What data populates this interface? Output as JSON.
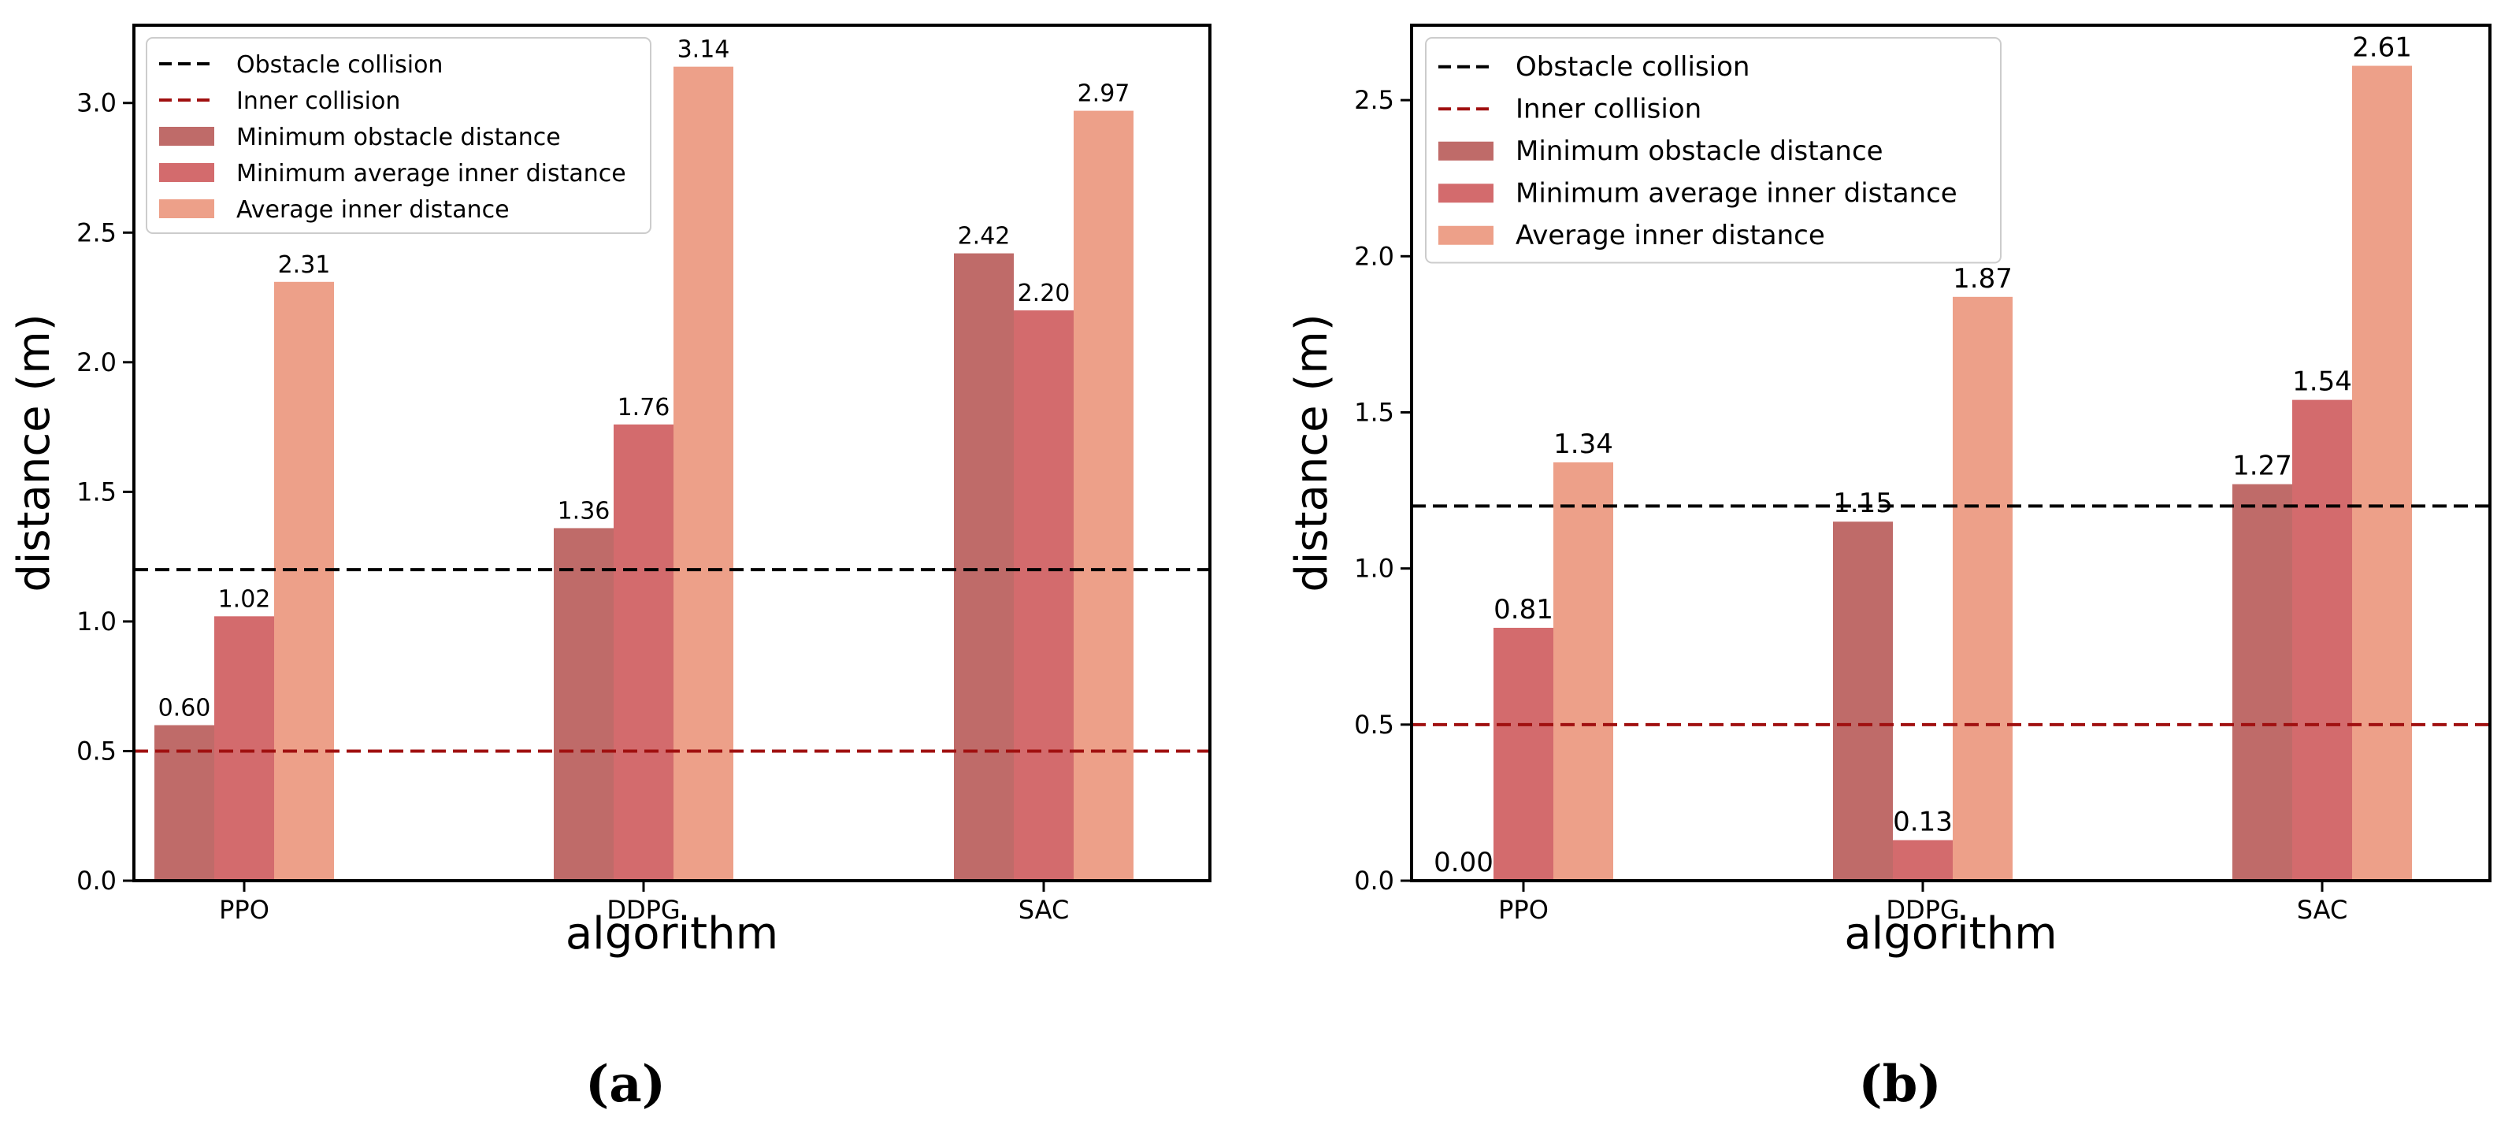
{
  "chart_data": [
    {
      "type": "bar",
      "panel_label": "(a)",
      "xlabel": "algorithm",
      "ylabel": "distance (m)",
      "categories": [
        "PPO",
        "DDPG",
        "SAC"
      ],
      "ylim": [
        0,
        3.3
      ],
      "yticks": [
        0.0,
        0.5,
        1.0,
        1.5,
        2.0,
        2.5,
        3.0
      ],
      "ytick_labels": [
        "0.0",
        "0.5",
        "1.0",
        "1.5",
        "2.0",
        "2.5",
        "3.0"
      ],
      "series": [
        {
          "name": "Minimum obstacle distance",
          "values": [
            0.6,
            1.36,
            2.42
          ],
          "labels": [
            "0.60",
            "1.36",
            "2.42"
          ],
          "color": "#BF6B69"
        },
        {
          "name": "Minimum average inner distance",
          "values": [
            1.02,
            1.76,
            2.2
          ],
          "labels": [
            "1.02",
            "1.76",
            "2.20"
          ],
          "color": "#D36B6D"
        },
        {
          "name": "Average inner distance",
          "values": [
            2.31,
            3.14,
            2.97
          ],
          "labels": [
            "2.31",
            "3.14",
            "2.97"
          ],
          "color": "#EDA089"
        }
      ],
      "hlines": [
        {
          "name": "Obstacle collision",
          "value": 1.2,
          "color": "#000000"
        },
        {
          "name": "Inner collision",
          "value": 0.5,
          "color": "#A01010"
        }
      ],
      "legend_position": "top-left",
      "grid": false
    },
    {
      "type": "bar",
      "panel_label": "(b)",
      "xlabel": "algorithm",
      "ylabel": "distance (m)",
      "categories": [
        "PPO",
        "DDPG",
        "SAC"
      ],
      "ylim": [
        0,
        2.74
      ],
      "yticks": [
        0.0,
        0.5,
        1.0,
        1.5,
        2.0,
        2.5
      ],
      "ytick_labels": [
        "0.0",
        "0.5",
        "1.0",
        "1.5",
        "2.0",
        "2.5"
      ],
      "series": [
        {
          "name": "Minimum obstacle distance",
          "values": [
            0.0,
            1.15,
            1.27
          ],
          "labels": [
            "0.00",
            "1.15",
            "1.27"
          ],
          "color": "#BF6B69"
        },
        {
          "name": "Minimum average inner distance",
          "values": [
            0.81,
            0.13,
            1.54
          ],
          "labels": [
            "0.81",
            "0.13",
            "1.54"
          ],
          "color": "#D36B6D"
        },
        {
          "name": "Average inner distance",
          "values": [
            1.34,
            1.87,
            2.61
          ],
          "labels": [
            "1.34",
            "1.87",
            "2.61"
          ],
          "color": "#EDA089"
        }
      ],
      "hlines": [
        {
          "name": "Obstacle collision",
          "value": 1.2,
          "color": "#000000"
        },
        {
          "name": "Inner collision",
          "value": 0.5,
          "color": "#A01010"
        }
      ],
      "legend_position": "top-left",
      "grid": false
    }
  ]
}
